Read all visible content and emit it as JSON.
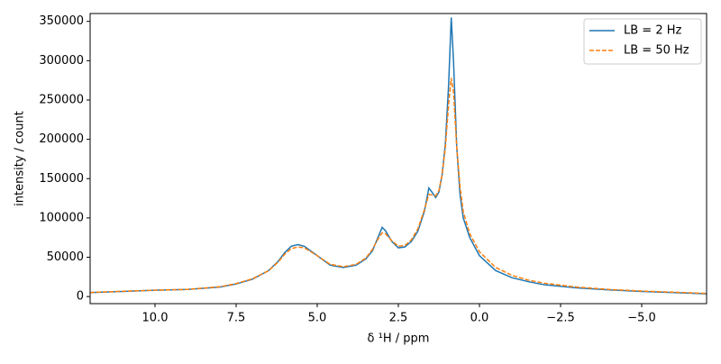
{
  "chart_data": {
    "type": "line",
    "xlabel": "δ ¹H / ppm",
    "ylabel": "intensity / count",
    "x": [
      12,
      11,
      10,
      9,
      8,
      7.5,
      7,
      6.5,
      6.2,
      6,
      5.8,
      5.6,
      5.4,
      5,
      4.6,
      4.2,
      3.8,
      3.5,
      3.3,
      3.1,
      3.0,
      2.9,
      2.7,
      2.5,
      2.3,
      2.1,
      1.9,
      1.7,
      1.56,
      1.45,
      1.35,
      1.25,
      1.15,
      1.05,
      0.95,
      0.87,
      0.8,
      0.7,
      0.6,
      0.5,
      0.3,
      0,
      -0.5,
      -1,
      -1.5,
      -2,
      -3,
      -4,
      -5,
      -6,
      -7
    ],
    "series": [
      {
        "name": "LB = 2 Hz",
        "color": "#1f77b4",
        "linestyle": "solid",
        "values": [
          5000,
          6500,
          8000,
          9000,
          12000,
          16000,
          22000,
          33000,
          45000,
          56000,
          64000,
          66000,
          64000,
          52000,
          40000,
          37000,
          40000,
          48000,
          58000,
          78000,
          88000,
          84000,
          70000,
          62000,
          63000,
          70000,
          83000,
          108000,
          138000,
          132000,
          126000,
          133000,
          155000,
          195000,
          270000,
          355000,
          300000,
          190000,
          130000,
          100000,
          75000,
          52000,
          33000,
          24000,
          19000,
          15000,
          11000,
          8500,
          6500,
          5000,
          3500
        ]
      },
      {
        "name": "LB = 50 Hz",
        "color": "#ff7f0e",
        "linestyle": "dashed",
        "values": [
          5200,
          6700,
          8100,
          9100,
          12500,
          16500,
          22500,
          33000,
          44000,
          54000,
          61000,
          63000,
          62000,
          52000,
          41000,
          38000,
          41000,
          49000,
          60000,
          75000,
          81000,
          80000,
          71000,
          64000,
          65000,
          72000,
          86000,
          110000,
          130000,
          129000,
          128000,
          135000,
          155000,
          190000,
          245000,
          278000,
          260000,
          190000,
          140000,
          108000,
          80000,
          57000,
          37000,
          27000,
          21000,
          17000,
          12000,
          9000,
          7000,
          5500,
          4000
        ]
      }
    ],
    "xlim": [
      12,
      -7
    ],
    "xticks": [
      {
        "value": 10,
        "label": "10.0"
      },
      7.5,
      {
        "value": 5,
        "label": "5.0"
      },
      2.5,
      {
        "value": 0,
        "label": "0.0"
      },
      {
        "value": -2.5,
        "label": "−2.5"
      },
      {
        "value": -5,
        "label": "−5.0"
      }
    ],
    "ylim": [
      -9000,
      360000
    ],
    "yticks": [
      0,
      50000,
      100000,
      150000,
      200000,
      250000,
      300000,
      350000
    ],
    "legend": "upper right"
  }
}
